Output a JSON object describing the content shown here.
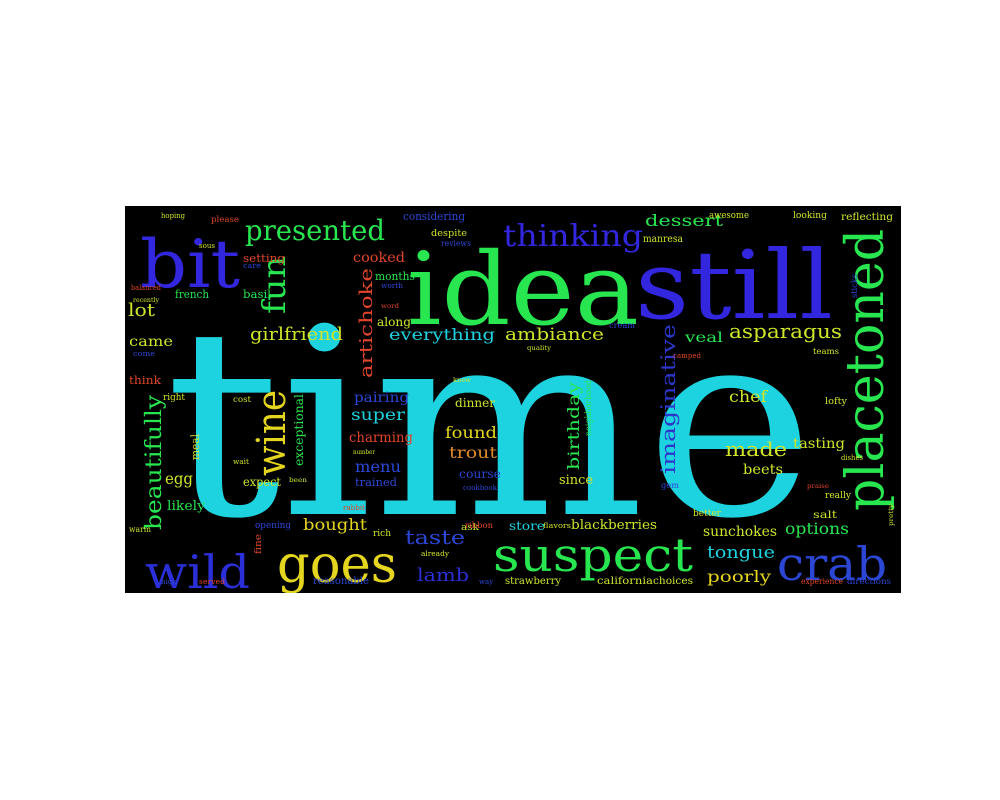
{
  "word_cloud": {
    "background": "#000000",
    "words": [
      {
        "text": "time",
        "color": "#1ed3e0"
      },
      {
        "text": "idea",
        "color": "#27e64f"
      },
      {
        "text": "still",
        "color": "#3227de"
      },
      {
        "text": "bit",
        "color": "#3227de"
      },
      {
        "text": "placetoned",
        "color": "#27e64f"
      },
      {
        "text": "suspect",
        "color": "#27e64f"
      },
      {
        "text": "goes",
        "color": "#e4d51e"
      },
      {
        "text": "wild",
        "color": "#2b2fd8"
      },
      {
        "text": "crab",
        "color": "#2c47d6"
      },
      {
        "text": "thinking",
        "color": "#3227de"
      },
      {
        "text": "presented",
        "color": "#27e64f"
      },
      {
        "text": "fun",
        "color": "#27e64f"
      },
      {
        "text": "wine",
        "color": "#e4d51e"
      },
      {
        "text": "beautifully",
        "color": "#27e64f"
      },
      {
        "text": "imaginative",
        "color": "#2b37c9"
      },
      {
        "text": "artichoke",
        "color": "#e0452a"
      },
      {
        "text": "asparagus",
        "color": "#cfe52a"
      },
      {
        "text": "girlfriend",
        "color": "#cfe52a"
      },
      {
        "text": "everything",
        "color": "#1ed3e0"
      },
      {
        "text": "ambiance",
        "color": "#cfe52a"
      },
      {
        "text": "dessert",
        "color": "#27e64f"
      },
      {
        "text": "lot",
        "color": "#cfe52a"
      },
      {
        "text": "came",
        "color": "#cfe52a"
      },
      {
        "text": "made",
        "color": "#cfe52a"
      },
      {
        "text": "chef",
        "color": "#cfe52a"
      },
      {
        "text": "birthday",
        "color": "#27e64f"
      },
      {
        "text": "found",
        "color": "#e4d51e"
      },
      {
        "text": "trout",
        "color": "#e08a2a"
      },
      {
        "text": "menu",
        "color": "#2c47d6"
      },
      {
        "text": "super",
        "color": "#1ed3e0"
      },
      {
        "text": "pairing",
        "color": "#2c47d6"
      },
      {
        "text": "charming",
        "color": "#e0452a"
      },
      {
        "text": "cooked",
        "color": "#e0452a"
      },
      {
        "text": "taste",
        "color": "#2c47d6"
      },
      {
        "text": "lamb",
        "color": "#2b2fd8"
      },
      {
        "text": "bought",
        "color": "#e4d51e"
      },
      {
        "text": "tongue",
        "color": "#1ed3e0"
      },
      {
        "text": "poorly",
        "color": "#e4d51e"
      },
      {
        "text": "options",
        "color": "#27e64f"
      },
      {
        "text": "sunchokes",
        "color": "#cfe52a"
      },
      {
        "text": "blackberries",
        "color": "#cfe52a"
      },
      {
        "text": "store",
        "color": "#1ed3e0"
      },
      {
        "text": "tasting",
        "color": "#cfe52a"
      },
      {
        "text": "beets",
        "color": "#cfe52a"
      },
      {
        "text": "veal",
        "color": "#27e64f"
      },
      {
        "text": "course",
        "color": "#2c47d6"
      },
      {
        "text": "since",
        "color": "#cfe52a"
      },
      {
        "text": "egg",
        "color": "#cfe52a"
      },
      {
        "text": "likely",
        "color": "#27e64f"
      },
      {
        "text": "expect",
        "color": "#cfe52a"
      },
      {
        "text": "exceptional",
        "color": "#27e64f"
      },
      {
        "text": "dinner",
        "color": "#cfe52a"
      },
      {
        "text": "trained",
        "color": "#2c47d6"
      },
      {
        "text": "along",
        "color": "#cfe52a"
      },
      {
        "text": "months",
        "color": "#27e64f"
      },
      {
        "text": "basil",
        "color": "#27e64f"
      },
      {
        "text": "french",
        "color": "#27e64f"
      },
      {
        "text": "setting",
        "color": "#e0452a"
      },
      {
        "text": "considering",
        "color": "#2c47d6"
      },
      {
        "text": "despite",
        "color": "#cfe52a"
      },
      {
        "text": "reviews",
        "color": "#2c47d6"
      },
      {
        "text": "awesome",
        "color": "#cfe52a"
      },
      {
        "text": "looking",
        "color": "#cfe52a"
      },
      {
        "text": "reflecting",
        "color": "#cfe52a"
      },
      {
        "text": "manresa",
        "color": "#cfe52a"
      },
      {
        "text": "meal",
        "color": "#cfe52a"
      },
      {
        "text": "think",
        "color": "#e0452a"
      },
      {
        "text": "right",
        "color": "#cfe52a"
      },
      {
        "text": "reasonable",
        "color": "#2c47d6"
      },
      {
        "text": "strawberry",
        "color": "#cfe52a"
      },
      {
        "text": "california",
        "color": "#cfe52a"
      },
      {
        "text": "choices",
        "color": "#cfe52a"
      },
      {
        "text": "salt",
        "color": "#cfe52a"
      },
      {
        "text": "lofty",
        "color": "#cfe52a"
      },
      {
        "text": "really",
        "color": "#cfe52a"
      },
      {
        "text": "directions",
        "color": "#2c47d6"
      },
      {
        "text": "experience",
        "color": "#e0452a"
      },
      {
        "text": "opening",
        "color": "#2c47d6"
      },
      {
        "text": "ask",
        "color": "#cfe52a"
      },
      {
        "text": "rich",
        "color": "#cfe52a"
      },
      {
        "text": "neighborhood",
        "color": "#27e64f"
      },
      {
        "text": "better",
        "color": "#cfe52a"
      },
      {
        "text": "please",
        "color": "#e0452a"
      },
      {
        "text": "hoping",
        "color": "#cfe52a"
      },
      {
        "text": "come",
        "color": "#2c47d6"
      },
      {
        "text": "gem",
        "color": "#2c47d6"
      },
      {
        "text": "dishes",
        "color": "#cfe52a"
      },
      {
        "text": "teams",
        "color": "#cfe52a"
      },
      {
        "text": "cream",
        "color": "#2c47d6"
      },
      {
        "text": "sticks",
        "color": "#2c47d6"
      },
      {
        "text": "ribbon",
        "color": "#e0452a"
      },
      {
        "text": "flavors",
        "color": "#cfe52a"
      },
      {
        "text": "cost",
        "color": "#cfe52a"
      },
      {
        "text": "cookbook",
        "color": "#2c47d6"
      },
      {
        "text": "worth",
        "color": "#2c47d6"
      },
      {
        "text": "balanced",
        "color": "#e0452a"
      },
      {
        "text": "recently",
        "color": "#cfe52a"
      },
      {
        "text": "quality",
        "color": "#cfe52a"
      },
      {
        "text": "warm",
        "color": "#cfe52a"
      },
      {
        "text": "high",
        "color": "#2c47d6"
      },
      {
        "text": "served",
        "color": "#e0452a"
      },
      {
        "text": "fine",
        "color": "#e0452a"
      },
      {
        "text": "rabbit",
        "color": "#e0452a"
      },
      {
        "text": "wait",
        "color": "#cfe52a"
      },
      {
        "text": "already",
        "color": "#cfe52a"
      },
      {
        "text": "way",
        "color": "#2c47d6"
      },
      {
        "text": "pretty",
        "color": "#cfe52a"
      },
      {
        "text": "praise",
        "color": "#e0452a"
      },
      {
        "text": "camped",
        "color": "#e0452a"
      },
      {
        "text": "care",
        "color": "#2c47d6"
      },
      {
        "text": "word",
        "color": "#e0452a"
      },
      {
        "text": "knew",
        "color": "#cfe52a"
      },
      {
        "text": "sous",
        "color": "#cfe52a"
      },
      {
        "text": "number",
        "color": "#cfe52a"
      },
      {
        "text": "been",
        "color": "#cfe52a"
      }
    ]
  }
}
